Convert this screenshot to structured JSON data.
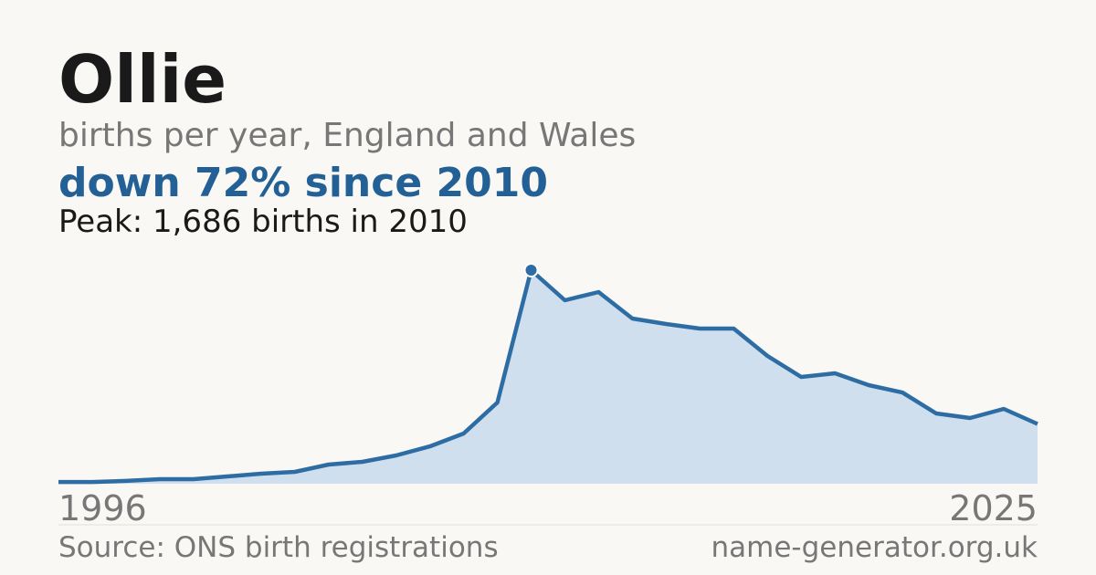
{
  "chart_data": {
    "type": "area",
    "title": "Ollie",
    "subtitle": "births per year, England and Wales",
    "headline": "down 72% since 2010",
    "annotation": "Peak: 1,686 births in 2010",
    "source": "Source: ONS birth registrations",
    "site": "name-generator.org.uk",
    "categories": [
      "1996",
      null,
      null,
      null,
      null,
      null,
      null,
      null,
      null,
      null,
      null,
      null,
      null,
      null,
      null,
      null,
      null,
      null,
      null,
      null,
      null,
      null,
      null,
      null,
      null,
      null,
      null,
      null,
      null,
      "2025"
    ],
    "values": [
      14,
      14,
      22,
      36,
      36,
      58,
      79,
      94,
      151,
      173,
      223,
      295,
      396,
      641,
      1686,
      1448,
      1513,
      1304,
      1261,
      1225,
      1225,
      1009,
      843,
      872,
      778,
      720,
      555,
      519,
      591,
      472
    ],
    "color": "#2e6da4",
    "fill": "#d0dfee"
  }
}
